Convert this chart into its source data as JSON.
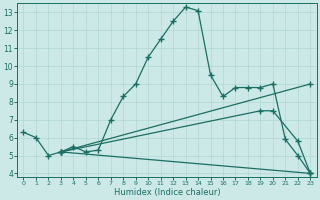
{
  "xlabel": "Humidex (Indice chaleur)",
  "xlim": [
    -0.5,
    23.5
  ],
  "ylim": [
    3.8,
    13.5
  ],
  "xticks": [
    0,
    1,
    2,
    3,
    4,
    5,
    6,
    7,
    8,
    9,
    10,
    11,
    12,
    13,
    14,
    15,
    16,
    17,
    18,
    19,
    20,
    21,
    22,
    23
  ],
  "yticks": [
    4,
    5,
    6,
    7,
    8,
    9,
    10,
    11,
    12,
    13
  ],
  "bg_color": "#cce9e7",
  "line_color": "#1a6e62",
  "grid_color": "#b0d8d4",
  "line_width": 0.9,
  "marker": "+",
  "marker_size": 5,
  "lines": [
    {
      "x": [
        0,
        1,
        2,
        3,
        4,
        5,
        6,
        7,
        8,
        9,
        10,
        11,
        12,
        13,
        14,
        15,
        16,
        17,
        18,
        19,
        20,
        21,
        22,
        23
      ],
      "y": [
        6.3,
        6.0,
        5.0,
        5.2,
        5.5,
        5.2,
        5.3,
        7.0,
        8.3,
        9.0,
        10.5,
        11.5,
        12.5,
        13.3,
        13.1,
        9.5,
        8.3,
        8.8,
        8.8,
        8.8,
        9.0,
        5.9,
        5.0,
        4.0
      ]
    },
    {
      "x": [
        3,
        23
      ],
      "y": [
        5.2,
        9.0
      ]
    },
    {
      "x": [
        3,
        19,
        20,
        22,
        23
      ],
      "y": [
        5.2,
        7.5,
        7.5,
        5.8,
        4.0
      ]
    },
    {
      "x": [
        3,
        23
      ],
      "y": [
        5.2,
        4.0
      ]
    }
  ]
}
